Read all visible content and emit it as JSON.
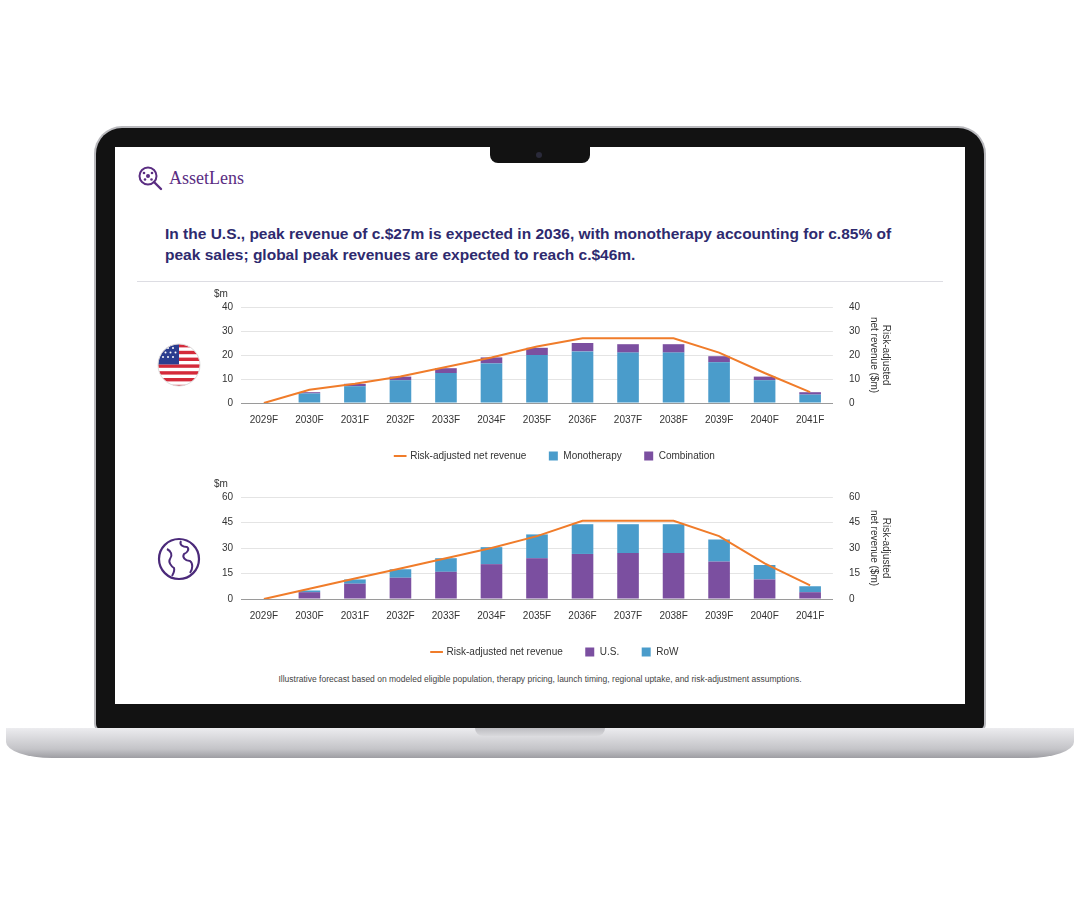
{
  "brand": "AssetLens",
  "headline": "In the U.S., peak revenue of c.$27m is expected in 2036, with monotherapy accounting for c.85% of peak sales; global peak revenues are expected to reach c.$46m.",
  "footnote": "Illustrative forecast based on modeled eligible population, therapy pricing, launch timing, regional uptake, and risk-adjustment assumptions.",
  "chart_data": [
    {
      "type": "bar",
      "categories": [
        "2029F",
        "2030F",
        "2031F",
        "2032F",
        "2033F",
        "2034F",
        "2035F",
        "2036F",
        "2037F",
        "2038F",
        "2039F",
        "2040F",
        "2041F"
      ],
      "series": [
        {
          "name": "Monotherapy",
          "color": "#4a9ccb",
          "values": [
            0,
            4,
            7,
            9.5,
            12.5,
            16.5,
            20,
            21.5,
            21,
            21,
            17,
            9.5,
            3.5
          ]
        },
        {
          "name": "Combination",
          "color": "#7b4fa0",
          "values": [
            0,
            0.5,
            1,
            1.5,
            2,
            2.5,
            3,
            3.5,
            3.5,
            3.5,
            2.5,
            1.5,
            1
          ]
        },
        {
          "name": "Risk-adjusted net revenue",
          "color": "#f07c2a",
          "type": "line",
          "axis": "y2",
          "values": [
            0,
            5.5,
            8,
            11,
            15,
            19,
            23.5,
            27,
            27,
            27,
            21,
            12.5,
            4.5
          ]
        }
      ],
      "ylabel": "$m",
      "y2label": "Risk-adjusted net revenue ($m)",
      "ylim": [
        0,
        40
      ],
      "yticks": [
        0,
        10,
        20,
        30,
        40
      ],
      "y2lim": [
        0,
        40
      ],
      "y2ticks": [
        0,
        10,
        20,
        30,
        40
      ],
      "stacked": true,
      "grid": true,
      "legend": "bottom"
    },
    {
      "type": "bar",
      "categories": [
        "2029F",
        "2030F",
        "2031F",
        "2032F",
        "2033F",
        "2034F",
        "2035F",
        "2036F",
        "2037F",
        "2038F",
        "2039F",
        "2040F",
        "2041F"
      ],
      "series": [
        {
          "name": "U.S.",
          "color": "#7b4fa0",
          "values": [
            0,
            4,
            9,
            12.5,
            16,
            20.5,
            24,
            26.5,
            27,
            27,
            22,
            11.5,
            4
          ]
        },
        {
          "name": "RoW",
          "color": "#4a9ccb",
          "values": [
            0,
            1,
            2.5,
            5,
            8,
            10,
            14,
            17.5,
            17,
            17,
            13,
            8.5,
            3.5
          ]
        },
        {
          "name": "Risk-adjusted net revenue",
          "color": "#f07c2a",
          "type": "line",
          "axis": "y2",
          "values": [
            0,
            6,
            12,
            18,
            24,
            30,
            37,
            46,
            46,
            46,
            37,
            21,
            8
          ]
        }
      ],
      "ylabel": "$m",
      "y2label": "Risk-adjusted net revenue ($m)",
      "ylim": [
        0,
        60
      ],
      "yticks": [
        0,
        15,
        30,
        45,
        60
      ],
      "y2lim": [
        0,
        60
      ],
      "y2ticks": [
        0,
        15,
        30,
        45,
        60
      ],
      "stacked": true,
      "grid": true,
      "legend": "bottom"
    }
  ]
}
